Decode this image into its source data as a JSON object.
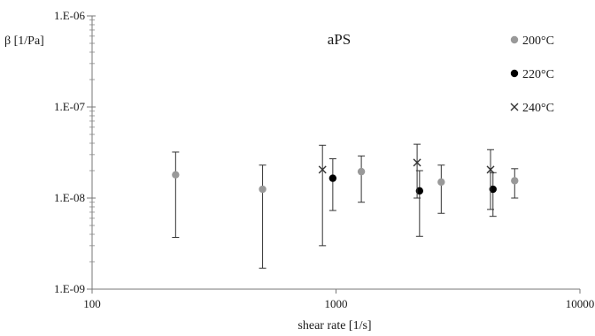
{
  "chart_data": {
    "type": "scatter",
    "title": "aPS",
    "xlabel": "shear rate [1/s]",
    "ylabel": "β [1/Pa]",
    "x_scale": "log",
    "y_scale": "log",
    "xlim": [
      100,
      10000
    ],
    "ylim": [
      1e-09,
      1e-06
    ],
    "x_ticks": [
      {
        "value": 100,
        "label": "100"
      },
      {
        "value": 1000,
        "label": "1000"
      },
      {
        "value": 10000,
        "label": "10000"
      }
    ],
    "y_ticks": [
      {
        "value": 1e-09,
        "label": "1.E-09"
      },
      {
        "value": 1e-08,
        "label": "1.E-08"
      },
      {
        "value": 1e-07,
        "label": "1.E-07"
      },
      {
        "value": 1e-06,
        "label": "1.E-06"
      }
    ],
    "grid": false,
    "legend_position": "top-right",
    "series": [
      {
        "name": "200°C",
        "marker": "circle",
        "color": "#999999",
        "points": [
          {
            "x": 220,
            "y": 1.8e-08,
            "ymin": 3.7e-09,
            "ymax": 3.2e-08
          },
          {
            "x": 500,
            "y": 1.25e-08,
            "ymin": 1.7e-09,
            "ymax": 2.3e-08
          },
          {
            "x": 1270,
            "y": 1.95e-08,
            "ymin": 9e-09,
            "ymax": 2.9e-08
          },
          {
            "x": 2700,
            "y": 1.5e-08,
            "ymin": 6.8e-09,
            "ymax": 2.3e-08
          },
          {
            "x": 5400,
            "y": 1.55e-08,
            "ymin": 1e-08,
            "ymax": 2.1e-08
          }
        ]
      },
      {
        "name": "220°C",
        "marker": "circle",
        "color": "#000000",
        "points": [
          {
            "x": 970,
            "y": 1.65e-08,
            "ymin": 7.3e-09,
            "ymax": 2.7e-08
          },
          {
            "x": 2200,
            "y": 1.2e-08,
            "ymin": 3.8e-09,
            "ymax": 2e-08
          },
          {
            "x": 4400,
            "y": 1.25e-08,
            "ymin": 6.3e-09,
            "ymax": 1.9e-08
          }
        ]
      },
      {
        "name": "240°C",
        "marker": "cross",
        "color": "#333333",
        "points": [
          {
            "x": 880,
            "y": 2.05e-08,
            "ymin": 3e-09,
            "ymax": 3.8e-08
          },
          {
            "x": 2150,
            "y": 2.45e-08,
            "ymin": 1e-08,
            "ymax": 3.9e-08
          },
          {
            "x": 4300,
            "y": 2.05e-08,
            "ymin": 7.5e-09,
            "ymax": 3.4e-08
          }
        ]
      }
    ]
  }
}
